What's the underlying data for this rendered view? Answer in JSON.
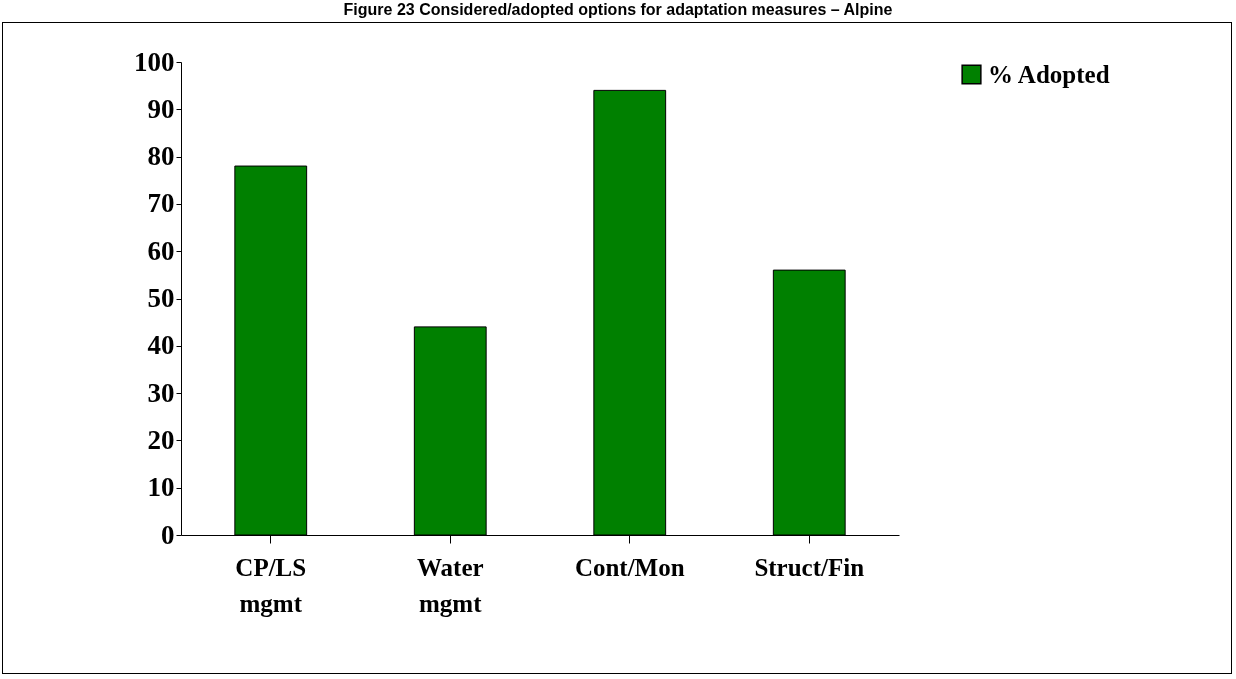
{
  "chart_data": {
    "type": "bar",
    "title": "Figure 23 Considered/adopted options for adaptation measures – Alpine",
    "categories": [
      "CP/LS mgmt",
      "Water mgmt",
      "Cont/Mon",
      "Struct/Fin"
    ],
    "series": [
      {
        "name": "% Adopted",
        "color": "#008000",
        "values": [
          78,
          44,
          94,
          56
        ]
      }
    ],
    "ylim": [
      0,
      100
    ],
    "yticks": [
      0,
      10,
      20,
      30,
      40,
      50,
      60,
      70,
      80,
      90,
      100
    ],
    "grid": false,
    "legend": "right"
  }
}
